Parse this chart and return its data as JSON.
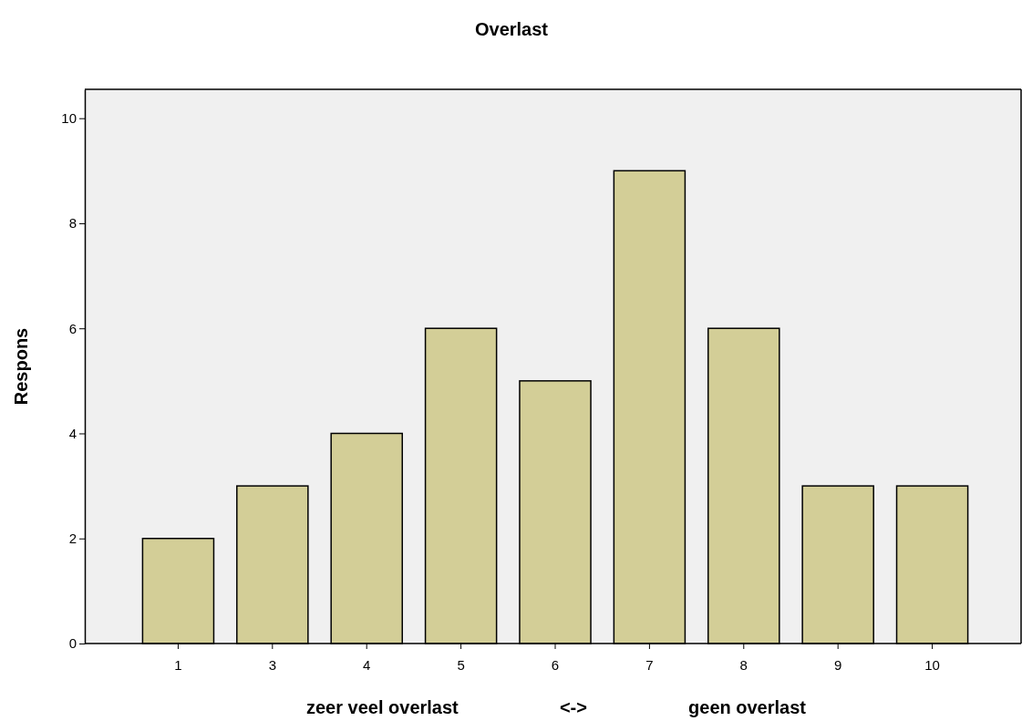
{
  "chart_data": {
    "type": "bar",
    "title": "Overlast",
    "xlabel": "zeer veel overlast                    <->                    geen overlast",
    "ylabel": "Respons",
    "categories": [
      "1",
      "3",
      "4",
      "5",
      "6",
      "7",
      "8",
      "9",
      "10"
    ],
    "values": [
      2,
      3,
      4,
      6,
      5,
      9,
      6,
      3,
      3
    ],
    "color": "#d3ce97",
    "ylim": [
      0,
      10.55
    ],
    "yticks": [
      0,
      2,
      4,
      6,
      8,
      10
    ],
    "grid": false
  }
}
